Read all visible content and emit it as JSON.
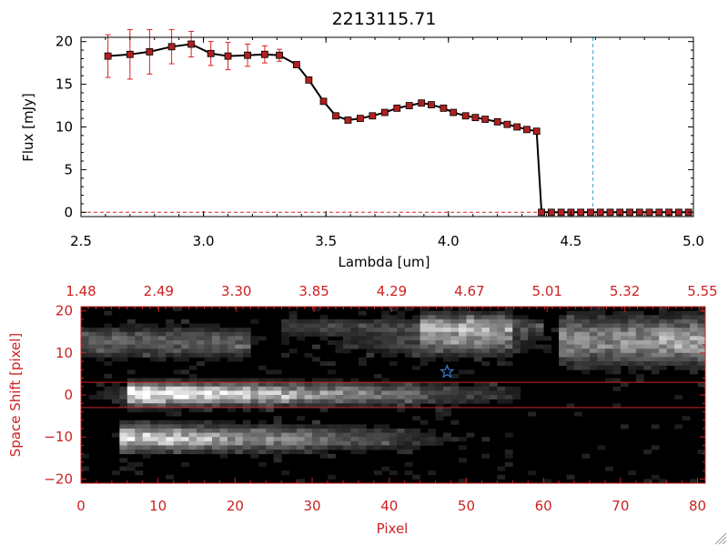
{
  "chart_data": [
    {
      "type": "line",
      "title": "2213115.71",
      "xlabel": "Lambda [um]",
      "ylabel": "Flux [mJy]",
      "xlim": [
        2.5,
        5.0
      ],
      "ylim": [
        -0.5,
        20.5
      ],
      "x_ticks": [
        2.5,
        3.0,
        3.5,
        4.0,
        4.5,
        5.0
      ],
      "x_tick_labels": [
        "2.5",
        "3.0",
        "3.5",
        "4.0",
        "4.5",
        "5.0"
      ],
      "y_ticks": [
        0,
        5,
        10,
        15,
        20
      ],
      "y_tick_labels": [
        "0",
        "5",
        "10",
        "15",
        "20"
      ],
      "marker_color": "#b02020",
      "line_color": "#000000",
      "errorbar_color": "#dd2020",
      "vline": {
        "x": 4.59,
        "color": "#3aa0d0",
        "style": "dashed"
      },
      "hline": {
        "y": 0,
        "color": "#dd2020",
        "style": "dashed"
      },
      "series": [
        {
          "name": "spectrum",
          "x": [
            2.61,
            2.7,
            2.78,
            2.87,
            2.95,
            3.03,
            3.1,
            3.18,
            3.25,
            3.31,
            3.38,
            3.43,
            3.49,
            3.54,
            3.59,
            3.64,
            3.69,
            3.74,
            3.79,
            3.84,
            3.89,
            3.93,
            3.98,
            4.02,
            4.07,
            4.11,
            4.15,
            4.2,
            4.24,
            4.28,
            4.32,
            4.36,
            4.38,
            4.42,
            4.46,
            4.5,
            4.54,
            4.58,
            4.62,
            4.66,
            4.7,
            4.74,
            4.78,
            4.82,
            4.86,
            4.9,
            4.94,
            4.98
          ],
          "y": [
            18.3,
            18.5,
            18.8,
            19.4,
            19.7,
            18.6,
            18.3,
            18.4,
            18.5,
            18.4,
            17.3,
            15.5,
            13.0,
            11.3,
            10.8,
            11.0,
            11.3,
            11.7,
            12.2,
            12.5,
            12.8,
            12.6,
            12.2,
            11.7,
            11.3,
            11.1,
            10.9,
            10.6,
            10.3,
            10.0,
            9.7,
            9.5,
            0.0,
            0.0,
            0.0,
            0.0,
            0.0,
            0.0,
            0.0,
            0.0,
            0.0,
            0.0,
            0.0,
            0.0,
            0.0,
            0.0,
            0.0,
            0.0
          ],
          "yerr": [
            2.5,
            2.9,
            2.6,
            2.0,
            1.5,
            1.4,
            1.6,
            1.3,
            1.0,
            0.7,
            0,
            0,
            0,
            0,
            0,
            0,
            0,
            0,
            0,
            0,
            0,
            0,
            0,
            0,
            0,
            0,
            0,
            0,
            0,
            0,
            0,
            0,
            0,
            0,
            0,
            0,
            0,
            0,
            0,
            0,
            0,
            0,
            0,
            0,
            0,
            0,
            0,
            0
          ]
        }
      ]
    },
    {
      "type": "heatmap",
      "xlabel": "Pixel",
      "ylabel": "Space Shift [pixel]",
      "xlim": [
        0,
        81
      ],
      "ylim": [
        -21,
        21
      ],
      "x_ticks": [
        0,
        10,
        20,
        30,
        40,
        50,
        60,
        70,
        80
      ],
      "x_tick_labels": [
        "0",
        "10",
        "20",
        "30",
        "40",
        "50",
        "60",
        "70",
        "80"
      ],
      "y_ticks": [
        -20,
        -10,
        0,
        10,
        20
      ],
      "y_tick_labels": [
        "−20",
        "−10",
        "0",
        "10",
        "20"
      ],
      "top_axis_labels": [
        "1.48",
        "2.49",
        "3.30",
        "3.85",
        "4.29",
        "4.67",
        "5.01",
        "5.32",
        "5.55"
      ],
      "axis_color": "#cc2222",
      "hlines": [
        3,
        -3
      ],
      "star_marker": {
        "x": 47.5,
        "y": 5.5,
        "color": "#3a7ad0"
      },
      "colormap": "grayscale"
    }
  ]
}
